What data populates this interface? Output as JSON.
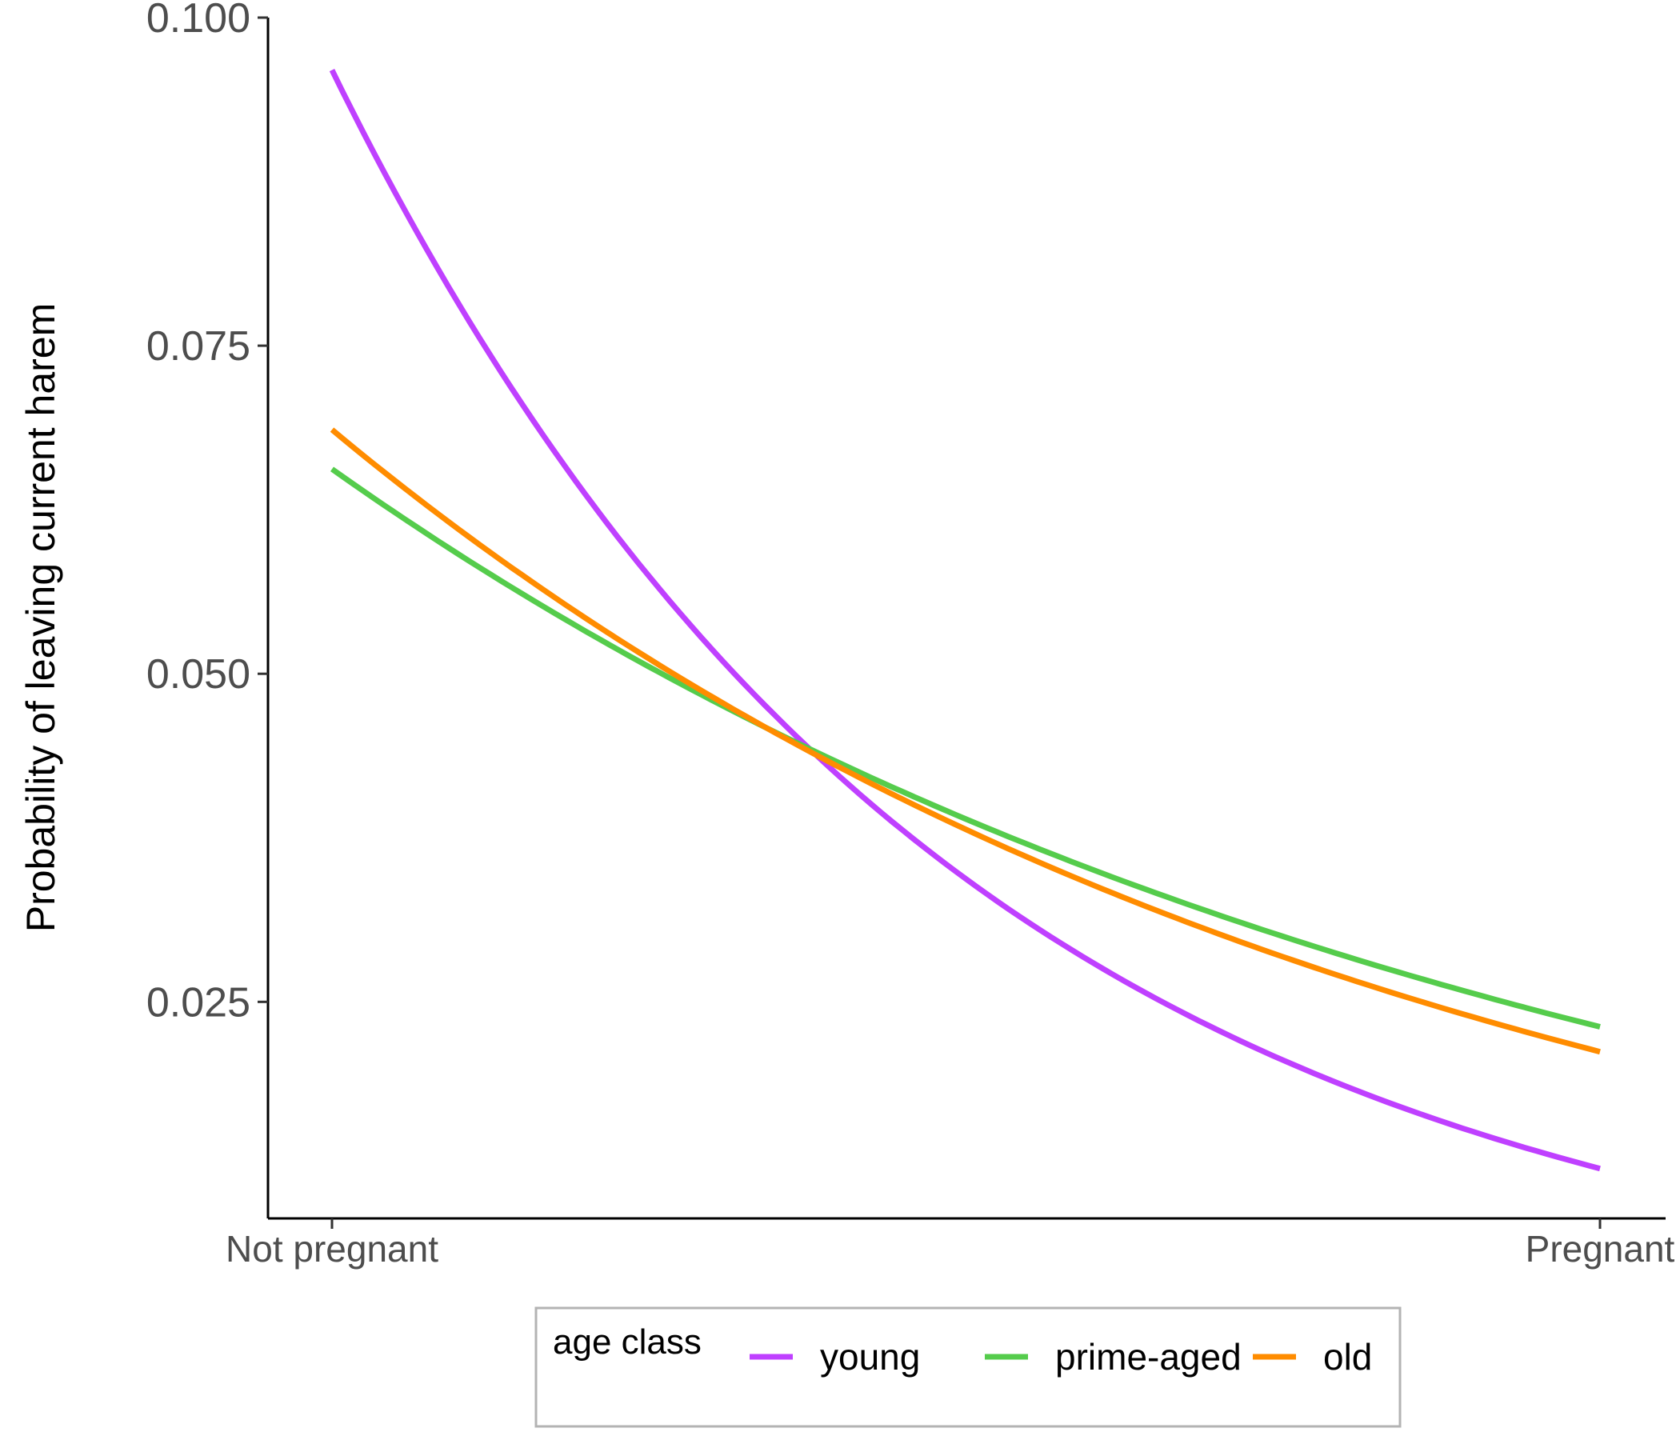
{
  "chart_data": {
    "type": "line",
    "title": "",
    "xlabel": "",
    "ylabel": "Probability of leaving current harem",
    "x_categories": [
      "Not pregnant",
      "Pregnant"
    ],
    "x_range": [
      0,
      1
    ],
    "ylim": [
      0.0085,
      0.1
    ],
    "y_ticks": [
      0.025,
      0.05,
      0.075,
      0.1
    ],
    "y_tick_labels": [
      "0.025",
      "0.050",
      "0.075",
      "0.100"
    ],
    "grid": false,
    "legend": {
      "title": "age class",
      "placement": "bottom",
      "entries": [
        "young",
        "prime-aged",
        "old"
      ]
    },
    "series": [
      {
        "name": "young",
        "color": "#BF40FF",
        "start": 0.096,
        "end": 0.0123
      },
      {
        "name": "prime-aged",
        "color": "#55CC4C",
        "start": 0.0656,
        "end": 0.0231
      },
      {
        "name": "old",
        "color": "#FF8C00",
        "start": 0.0686,
        "end": 0.0212
      }
    ]
  }
}
